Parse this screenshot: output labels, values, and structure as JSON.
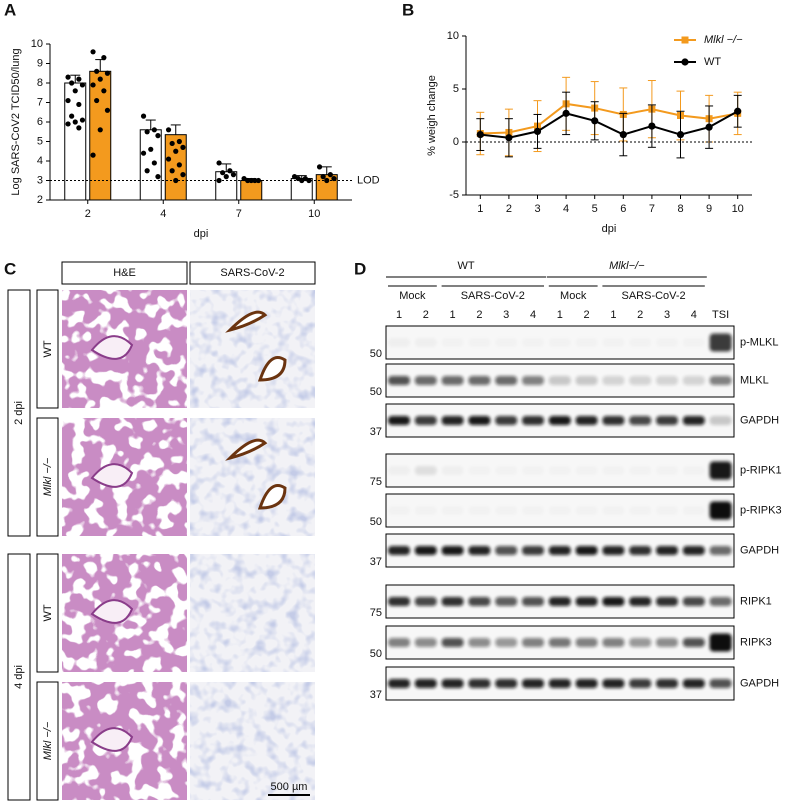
{
  "chart_data": [
    {
      "type": "bar",
      "panel_label": "A",
      "y_label": "Log SARS-CoV2 TCID50/lung",
      "x_label": "dpi",
      "categories": [
        "2",
        "4",
        "7",
        "10"
      ],
      "ylim": [
        2,
        10
      ],
      "yticks": [
        2,
        3,
        4,
        5,
        6,
        7,
        8,
        9,
        10
      ],
      "reference_line": {
        "value": 3,
        "label": "LOD"
      },
      "series": [
        {
          "color": "#ffffff",
          "values": [
            8.0,
            5.6,
            3.45,
            3.1
          ],
          "errors": [
            0.4,
            0.5,
            0.4,
            0.15
          ],
          "points": [
            [
              8.3,
              8.2,
              8.0,
              7.9,
              7.6,
              7.1,
              6.9,
              6.3,
              6.1,
              6.0,
              5.9,
              5.7
            ],
            [
              6.3,
              5.6,
              5.5,
              5.3,
              4.6,
              4.4,
              3.9,
              3.5,
              3.2
            ],
            [
              3.9,
              3.5,
              3.4,
              3.3,
              3.2,
              3.0
            ],
            [
              3.2,
              3.1,
              3.1,
              3.0,
              3.0
            ]
          ]
        },
        {
          "color": "#f39a1e",
          "values": [
            8.6,
            5.35,
            3.0,
            3.3
          ],
          "errors": [
            0.6,
            0.5,
            0.1,
            0.4
          ],
          "points": [
            [
              9.6,
              9.3,
              8.6,
              8.5,
              8.2,
              7.9,
              7.6,
              7.1,
              6.6,
              5.6,
              4.3
            ],
            [
              5.6,
              5.0,
              4.9,
              4.7,
              4.5,
              4.1,
              3.8,
              3.5,
              3.3,
              3.0
            ],
            [
              3.1,
              3.0,
              3.0,
              3.0,
              3.0
            ],
            [
              3.7,
              3.3,
              3.2,
              3.1,
              3.0
            ]
          ]
        }
      ]
    },
    {
      "type": "line",
      "panel_label": "B",
      "y_label": "% weigh change",
      "x_label": "dpi",
      "x": [
        1,
        2,
        3,
        4,
        5,
        6,
        7,
        8,
        9,
        10
      ],
      "xlim": [
        0.5,
        10.5
      ],
      "xticks": [
        1,
        2,
        3,
        4,
        5,
        6,
        7,
        8,
        9,
        10
      ],
      "ylim": [
        -5,
        10
      ],
      "yticks": [
        -5,
        0,
        5,
        10
      ],
      "reference_line": {
        "value": 0
      },
      "legend": "top-right",
      "series": [
        {
          "name": "Mlkl −/−",
          "color": "#f39a1e",
          "marker": "square",
          "values": [
            0.8,
            0.9,
            1.5,
            3.6,
            3.2,
            2.6,
            3.1,
            2.5,
            2.2,
            2.7
          ],
          "errors": [
            2.0,
            2.2,
            2.4,
            2.5,
            2.5,
            2.5,
            2.7,
            2.3,
            2.2,
            2.0
          ]
        },
        {
          "name": "WT",
          "color": "#000000",
          "marker": "circle",
          "values": [
            0.7,
            0.4,
            1.0,
            2.7,
            2.0,
            0.7,
            1.5,
            0.7,
            1.4,
            2.9
          ],
          "errors": [
            1.5,
            1.8,
            1.6,
            2.0,
            1.8,
            2.0,
            2.0,
            2.2,
            2.0,
            1.5
          ]
        }
      ]
    }
  ],
  "panel_c": {
    "panel_label": "C",
    "columns": [
      "H&E",
      "SARS-CoV-2"
    ],
    "groups": [
      {
        "label": "2 dpi",
        "rows": [
          "WT",
          "Mlkl −/−"
        ]
      },
      {
        "label": "4 dpi",
        "rows": [
          "WT",
          "Mlkl −/−"
        ]
      }
    ],
    "scale_bar": "500 µm"
  },
  "panel_d": {
    "panel_label": "D",
    "groups": [
      {
        "label": "WT",
        "subgroups": [
          {
            "label": "Mock",
            "lanes": [
              "1",
              "2"
            ]
          },
          {
            "label": "SARS-CoV-2",
            "lanes": [
              "1",
              "2",
              "3",
              "4"
            ]
          }
        ]
      },
      {
        "label": "Mlkl−/−",
        "subgroups": [
          {
            "label": "Mock",
            "lanes": [
              "1",
              "2"
            ]
          },
          {
            "label": "SARS-CoV-2",
            "lanes": [
              "1",
              "2",
              "3",
              "4"
            ]
          }
        ]
      }
    ],
    "extra_lanes": [
      "TSI"
    ],
    "blots": [
      {
        "label": "p-MLKL",
        "marker": 50
      },
      {
        "label": "MLKL",
        "marker": 50
      },
      {
        "label": "GAPDH",
        "marker": 37
      },
      {
        "label": "p-RIPK1",
        "marker": 75
      },
      {
        "label": "p-RIPK3",
        "marker": 50
      },
      {
        "label": "GAPDH",
        "marker": 37
      },
      {
        "label": "RIPK1",
        "marker": 75
      },
      {
        "label": "RIPK3",
        "marker": 50
      },
      {
        "label": "GAPDH",
        "marker": 37
      }
    ]
  }
}
